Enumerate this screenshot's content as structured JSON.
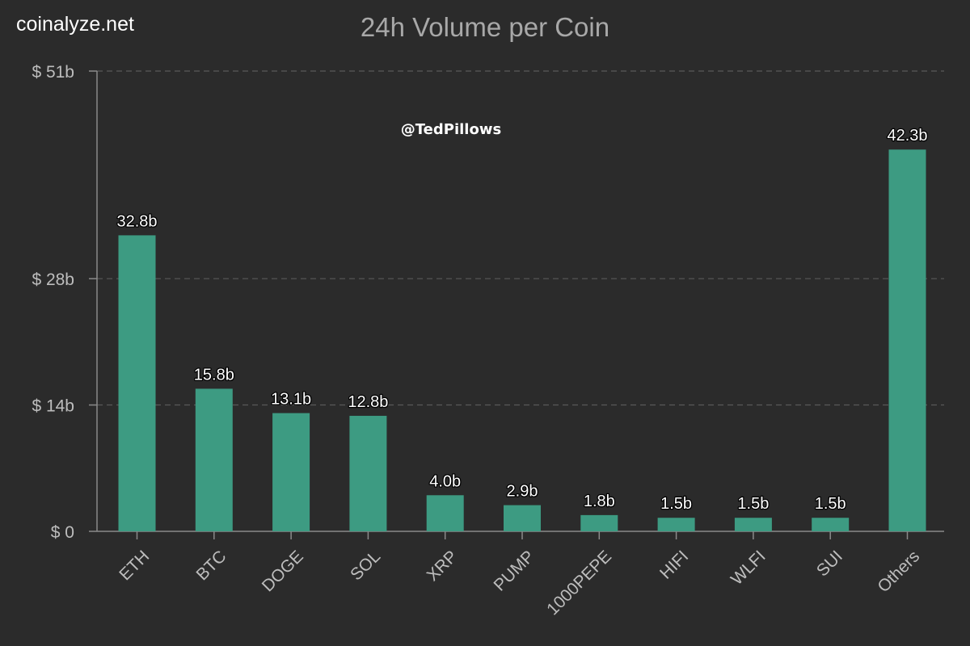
{
  "brand": "coinalyze.net",
  "watermark": "@TedPillows",
  "colors": {
    "background": "#2b2b2b",
    "bar": "#3d9b82",
    "grid": "#5a5a5a",
    "axis": "#8a8a8a",
    "tick_label": "#bdbdbd",
    "data_label": "#ffffff"
  },
  "chart_data": {
    "type": "bar",
    "title": "24h Volume per Coin",
    "xlabel": "",
    "ylabel": "",
    "categories": [
      "ETH",
      "BTC",
      "DOGE",
      "SOL",
      "XRP",
      "PUMP",
      "1000PEPE",
      "HIFI",
      "WLFI",
      "SUI",
      "Others"
    ],
    "values": [
      32.8,
      15.8,
      13.1,
      12.8,
      4.0,
      2.9,
      1.8,
      1.5,
      1.5,
      1.5,
      42.3
    ],
    "data_labels": [
      "32.8b",
      "15.8b",
      "13.1b",
      "12.8b",
      "4.0b",
      "2.9b",
      "1.8b",
      "1.5b",
      "1.5b",
      "1.5b",
      "42.3b"
    ],
    "yticks": [
      0,
      14,
      28,
      51
    ],
    "ytick_labels": [
      "$ 0",
      "$ 14b",
      "$ 28b",
      "$ 51b"
    ],
    "ylim": [
      0,
      51
    ],
    "grid": true,
    "legend": "none"
  }
}
